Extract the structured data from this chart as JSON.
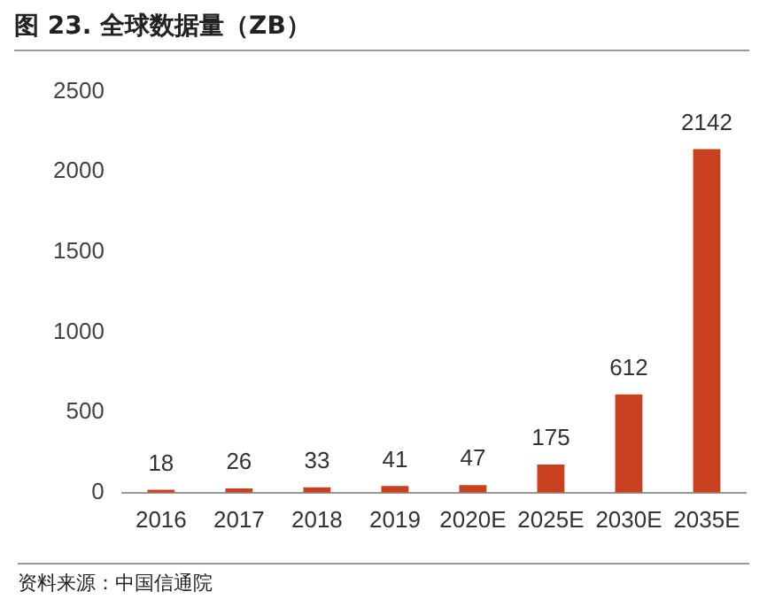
{
  "chart_data": {
    "type": "bar",
    "title": "图 23. 全球数据量（ZB）",
    "categories": [
      "2016",
      "2017",
      "2018",
      "2019",
      "2020E",
      "2025E",
      "2030E",
      "2035E"
    ],
    "values": [
      18,
      26,
      33,
      41,
      47,
      175,
      612,
      2142
    ],
    "color": "#c9411f",
    "ylim": [
      0,
      2500
    ],
    "yticks": [
      0,
      500,
      1000,
      1500,
      2000,
      2500
    ],
    "grid": false,
    "data_labels": true,
    "annotations": [
      "资料来源：中国信通院"
    ]
  }
}
